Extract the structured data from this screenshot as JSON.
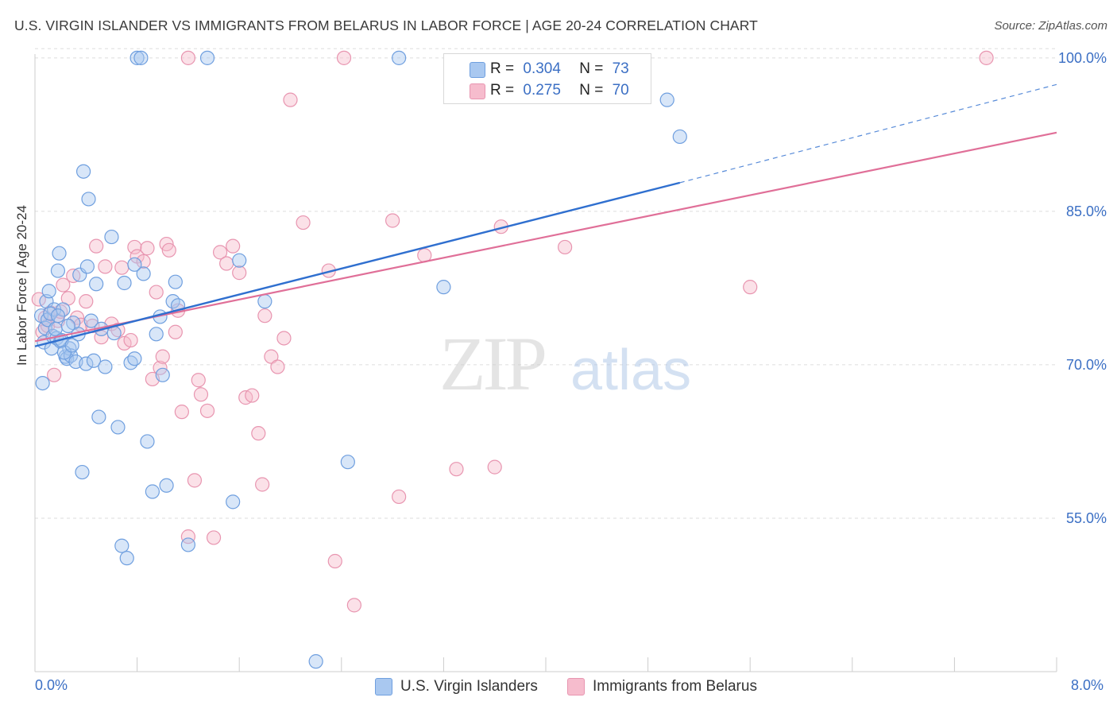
{
  "title": "U.S. VIRGIN ISLANDER VS IMMIGRANTS FROM BELARUS IN LABOR FORCE | AGE 20-24 CORRELATION CHART",
  "source": "Source: ZipAtlas.com",
  "watermark": {
    "zip": "ZIP",
    "atlas": "atlas"
  },
  "legend": {
    "r_label": "R =",
    "n_label": "N =",
    "series1": {
      "r": "0.304",
      "n": "73"
    },
    "series2": {
      "r": "0.275",
      "n": "70"
    }
  },
  "bottom_legend": {
    "series1": "U.S. Virgin Islanders",
    "series2": "Immigrants from Belarus"
  },
  "colors": {
    "blue_fill": "#a9c8f0",
    "blue_stroke": "#6f9fdf",
    "blue_line": "#2f6fcf",
    "pink_fill": "#f6bccd",
    "pink_stroke": "#e895b0",
    "pink_line": "#e06f98",
    "axis_text": "#3b6fc4",
    "grid": "#dddddd"
  },
  "chart_data": {
    "type": "scatter",
    "xlabel": "",
    "ylabel": "In Labor Force | Age 20-24",
    "xlim": [
      0,
      8
    ],
    "ylim": [
      40,
      101
    ],
    "x_tick_labels": [
      "0.0%",
      "8.0%"
    ],
    "y_ticks": [
      55,
      70,
      85,
      100
    ],
    "y_tick_labels": [
      "55.0%",
      "70.0%",
      "85.0%",
      "100.0%"
    ],
    "grid": true,
    "series": [
      {
        "name": "U.S. Virgin Islanders",
        "trend": {
          "x0": 0.0,
          "y0": 71.8,
          "x1": 5.05,
          "y1": 87.8,
          "x_dash_end": 8.0,
          "y_dash_end": 97.4
        },
        "points": [
          [
            0.05,
            74.8
          ],
          [
            0.07,
            72.2
          ],
          [
            0.08,
            73.6
          ],
          [
            0.09,
            76.2
          ],
          [
            0.1,
            74.4
          ],
          [
            0.11,
            77.2
          ],
          [
            0.13,
            71.6
          ],
          [
            0.14,
            72.8
          ],
          [
            0.15,
            75.4
          ],
          [
            0.17,
            72.6
          ],
          [
            0.18,
            79.2
          ],
          [
            0.19,
            80.9
          ],
          [
            0.2,
            72.3
          ],
          [
            0.22,
            75.4
          ],
          [
            0.24,
            70.8
          ],
          [
            0.25,
            70.6
          ],
          [
            0.27,
            71.6
          ],
          [
            0.28,
            70.9
          ],
          [
            0.3,
            74.1
          ],
          [
            0.32,
            70.3
          ],
          [
            0.34,
            73.0
          ],
          [
            0.35,
            78.8
          ],
          [
            0.37,
            59.5
          ],
          [
            0.38,
            88.9
          ],
          [
            0.4,
            70.1
          ],
          [
            0.41,
            79.6
          ],
          [
            0.42,
            86.2
          ],
          [
            0.44,
            74.3
          ],
          [
            0.46,
            70.4
          ],
          [
            0.48,
            77.9
          ],
          [
            0.5,
            64.9
          ],
          [
            0.55,
            69.8
          ],
          [
            0.6,
            82.5
          ],
          [
            0.62,
            73.1
          ],
          [
            0.65,
            63.9
          ],
          [
            0.68,
            52.3
          ],
          [
            0.7,
            78.0
          ],
          [
            0.72,
            51.1
          ],
          [
            0.75,
            70.2
          ],
          [
            0.78,
            70.6
          ],
          [
            0.8,
            100
          ],
          [
            0.83,
            100
          ],
          [
            0.85,
            78.9
          ],
          [
            0.88,
            62.5
          ],
          [
            0.92,
            57.6
          ],
          [
            0.95,
            73.0
          ],
          [
            0.98,
            74.7
          ],
          [
            1.0,
            69.0
          ],
          [
            1.03,
            58.2
          ],
          [
            1.08,
            76.2
          ],
          [
            1.1,
            78.1
          ],
          [
            1.12,
            75.8
          ],
          [
            1.2,
            52.4
          ],
          [
            1.35,
            100
          ],
          [
            1.55,
            56.6
          ],
          [
            1.6,
            80.2
          ],
          [
            1.8,
            76.2
          ],
          [
            2.2,
            41.0
          ],
          [
            2.45,
            60.5
          ],
          [
            2.85,
            100
          ],
          [
            3.2,
            77.6
          ],
          [
            4.95,
            95.9
          ],
          [
            5.05,
            92.3
          ],
          [
            0.06,
            68.2
          ],
          [
            0.12,
            75.0
          ],
          [
            0.16,
            73.5
          ],
          [
            0.21,
            72.4
          ],
          [
            0.23,
            71.2
          ],
          [
            0.26,
            73.8
          ],
          [
            0.29,
            71.9
          ],
          [
            0.52,
            73.5
          ],
          [
            0.78,
            79.8
          ],
          [
            0.18,
            74.8
          ]
        ]
      },
      {
        "name": "Immigrants from Belarus",
        "trend": {
          "x0": 0.0,
          "y0": 72.3,
          "x1": 8.0,
          "y1": 92.7
        },
        "points": [
          [
            0.03,
            76.4
          ],
          [
            0.06,
            73.2
          ],
          [
            0.08,
            74.6
          ],
          [
            0.1,
            73.8
          ],
          [
            0.12,
            75.1
          ],
          [
            0.15,
            69.0
          ],
          [
            0.18,
            74.3
          ],
          [
            0.2,
            75.2
          ],
          [
            0.22,
            77.8
          ],
          [
            0.26,
            76.5
          ],
          [
            0.3,
            78.7
          ],
          [
            0.33,
            74.6
          ],
          [
            0.36,
            73.9
          ],
          [
            0.4,
            76.2
          ],
          [
            0.45,
            73.8
          ],
          [
            0.48,
            81.6
          ],
          [
            0.52,
            72.7
          ],
          [
            0.55,
            79.6
          ],
          [
            0.6,
            74.0
          ],
          [
            0.65,
            73.4
          ],
          [
            0.68,
            79.5
          ],
          [
            0.7,
            72.1
          ],
          [
            0.75,
            72.4
          ],
          [
            0.78,
            81.5
          ],
          [
            0.8,
            80.6
          ],
          [
            0.85,
            80.1
          ],
          [
            0.88,
            81.4
          ],
          [
            0.92,
            68.6
          ],
          [
            0.95,
            77.1
          ],
          [
            0.98,
            69.7
          ],
          [
            1.0,
            70.8
          ],
          [
            1.03,
            81.8
          ],
          [
            1.05,
            81.2
          ],
          [
            1.1,
            73.2
          ],
          [
            1.12,
            75.3
          ],
          [
            1.15,
            65.4
          ],
          [
            1.2,
            53.2
          ],
          [
            1.25,
            58.7
          ],
          [
            1.28,
            68.5
          ],
          [
            1.3,
            67.1
          ],
          [
            1.35,
            65.5
          ],
          [
            1.4,
            53.1
          ],
          [
            1.45,
            81.0
          ],
          [
            1.5,
            79.9
          ],
          [
            1.55,
            81.6
          ],
          [
            1.6,
            79.0
          ],
          [
            1.65,
            66.8
          ],
          [
            1.7,
            67.0
          ],
          [
            1.75,
            63.3
          ],
          [
            1.78,
            58.3
          ],
          [
            1.8,
            74.8
          ],
          [
            1.85,
            70.8
          ],
          [
            1.9,
            69.8
          ],
          [
            1.95,
            72.6
          ],
          [
            2.0,
            95.9
          ],
          [
            2.1,
            83.9
          ],
          [
            2.3,
            79.2
          ],
          [
            2.35,
            50.8
          ],
          [
            2.5,
            46.5
          ],
          [
            2.8,
            84.1
          ],
          [
            2.85,
            57.1
          ],
          [
            3.05,
            80.7
          ],
          [
            3.3,
            59.8
          ],
          [
            3.6,
            60.0
          ],
          [
            3.65,
            83.5
          ],
          [
            4.15,
            81.5
          ],
          [
            5.6,
            77.6
          ],
          [
            7.45,
            100
          ],
          [
            1.2,
            100
          ],
          [
            2.42,
            100
          ]
        ]
      }
    ]
  }
}
